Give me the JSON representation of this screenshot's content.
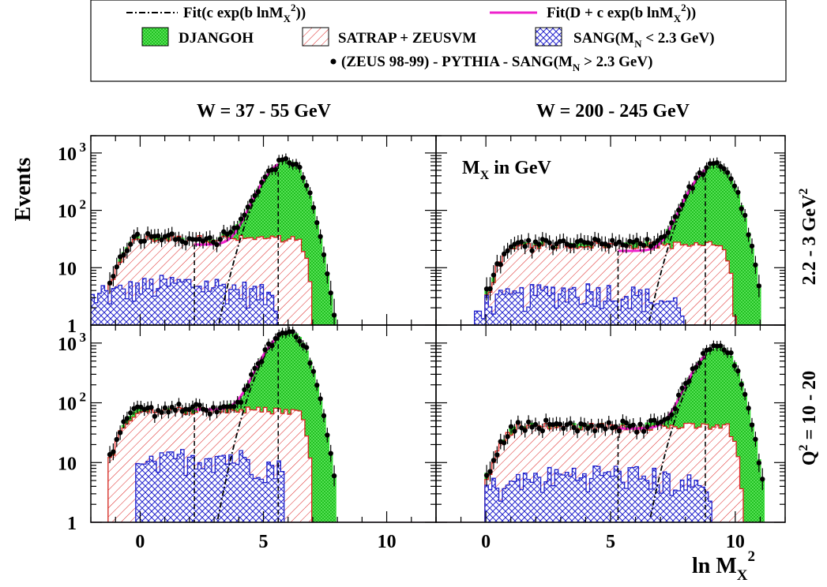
{
  "legend": {
    "fit_c": "Fit(c exp(b lnM",
    "fit_c_sub": "X",
    "fit_c_sup": "2",
    "fit_c_end": "))",
    "fit_d": "Fit(D + c exp(b lnM",
    "fit_d_sub": "X",
    "fit_d_sup": "2",
    "fit_d_end": "))",
    "djangoh": "DJANGOH",
    "satrap": "SATRAP + ZEUSVM",
    "sang_a": "SANG(M",
    "sang_a_sub": "N",
    "sang_a_end": " < 2.3 GeV)",
    "data_a": "(ZEUS 98-99) - PYTHIA - SANG(M",
    "data_a_sub": "N",
    "data_a_end": " > 2.3 GeV)"
  },
  "titles": {
    "w_left": "W = 37 - 55 GeV",
    "w_right": "W = 200 - 245 GeV",
    "ylabel": "Events",
    "mx_label": "M",
    "mx_sub": "X",
    "mx_end": " in GeV",
    "q_top": "2.2 - 3 GeV",
    "q_top_sup": "2",
    "q_bot_q": "Q",
    "q_bot_sup": "2",
    "q_bot_rest": " = 10 - 20",
    "xlabel": "ln M",
    "xlabel_sub": "X",
    "xlabel_sup": "2"
  },
  "colors": {
    "djangoh": "#33dd33",
    "satrap": "#dd2222",
    "sang": "#2222cc",
    "fit_d": "#ee22cc",
    "data": "#000000"
  },
  "chart_data": [
    {
      "type": "histogram",
      "panel": "W = 37 - 55 GeV, Q2 = 2.2 - 3 GeV2",
      "x_axis": {
        "label": "ln MX^2",
        "range": [
          -2,
          12
        ],
        "ticks": [
          "0",
          "5",
          "10"
        ]
      },
      "y_axis": {
        "label": "Events",
        "scale": "log",
        "range": [
          1,
          2000
        ],
        "ticks": [
          "1",
          "10",
          "10^2",
          "10^3"
        ]
      },
      "fit_range": [
        2.2,
        5.6
      ],
      "series": [
        {
          "name": "DJANGOH",
          "peak_x": 6.0,
          "peak_y": 700,
          "end_x": 8.0
        },
        {
          "name": "SATRAP + ZEUSVM",
          "plateau_y": 32,
          "start_x": -1.3,
          "end_x": 7.0
        },
        {
          "name": "SANG(MN < 2.3 GeV)",
          "level_y": 4,
          "start_x": -2.0,
          "end_x": 5.6
        },
        {
          "name": "(ZEUS 98-99) - PYTHIA - SANG(MN > 2.3 GeV)",
          "peak_x": 5.9,
          "peak_y": 700
        }
      ]
    },
    {
      "type": "histogram",
      "panel": "W = 200 - 245 GeV, Q2 = 2.2 - 3 GeV2",
      "x_axis": {
        "label": "ln MX^2",
        "range": [
          -2,
          12
        ],
        "ticks": [
          "0",
          "5",
          "10"
        ]
      },
      "y_axis": {
        "label": "Events",
        "scale": "log",
        "range": [
          1,
          2000
        ]
      },
      "fit_range": [
        5.3,
        8.8
      ],
      "series": [
        {
          "name": "DJANGOH",
          "peak_x": 9.3,
          "peak_y": 600,
          "end_x": 11.0
        },
        {
          "name": "SATRAP + ZEUSVM",
          "plateau_y": 25,
          "start_x": 0.0,
          "end_x": 10.0
        },
        {
          "name": "SANG(MN < 2.3 GeV)",
          "level_y": 3,
          "start_x": -0.5,
          "end_x": 8.0
        },
        {
          "name": "(ZEUS 98-99) - PYTHIA - SANG(MN > 2.3 GeV)",
          "peak_x": 9.3,
          "peak_y": 600
        }
      ]
    },
    {
      "type": "histogram",
      "panel": "W = 37 - 55 GeV, Q2 = 10 - 20 GeV2",
      "x_axis": {
        "label": "ln MX^2",
        "range": [
          -2,
          12
        ],
        "ticks": [
          "0",
          "5",
          "10"
        ]
      },
      "y_axis": {
        "label": "Events",
        "scale": "log",
        "range": [
          1,
          2000
        ]
      },
      "fit_range": [
        2.2,
        5.6
      ],
      "series": [
        {
          "name": "DJANGOH",
          "peak_x": 6.1,
          "peak_y": 1500,
          "end_x": 8.0
        },
        {
          "name": "SATRAP + ZEUSVM",
          "plateau_y": 75,
          "start_x": -1.3,
          "end_x": 7.0
        },
        {
          "name": "SANG(MN < 2.3 GeV)",
          "level_y": 10,
          "start_x": -0.2,
          "end_x": 5.8
        },
        {
          "name": "(ZEUS 98-99) - PYTHIA - SANG(MN > 2.3 GeV)",
          "peak_x": 6.0,
          "peak_y": 1500
        }
      ]
    },
    {
      "type": "histogram",
      "panel": "W = 200 - 245 GeV, Q2 = 10 - 20 GeV2",
      "x_axis": {
        "label": "ln MX^2",
        "range": [
          -2,
          12
        ],
        "ticks": [
          "0",
          "5",
          "10"
        ]
      },
      "y_axis": {
        "label": "Events",
        "scale": "log",
        "range": [
          1,
          2000
        ]
      },
      "fit_range": [
        5.3,
        8.8
      ],
      "series": [
        {
          "name": "DJANGOH",
          "peak_x": 9.4,
          "peak_y": 800,
          "end_x": 11.2
        },
        {
          "name": "SATRAP + ZEUSVM",
          "plateau_y": 40,
          "start_x": 0.0,
          "end_x": 10.3
        },
        {
          "name": "SANG(MN < 2.3 GeV)",
          "level_y": 5,
          "start_x": 0.0,
          "end_x": 9.0
        },
        {
          "name": "(ZEUS 98-99) - PYTHIA - SANG(MN > 2.3 GeV)",
          "peak_x": 9.4,
          "peak_y": 800
        }
      ]
    }
  ]
}
